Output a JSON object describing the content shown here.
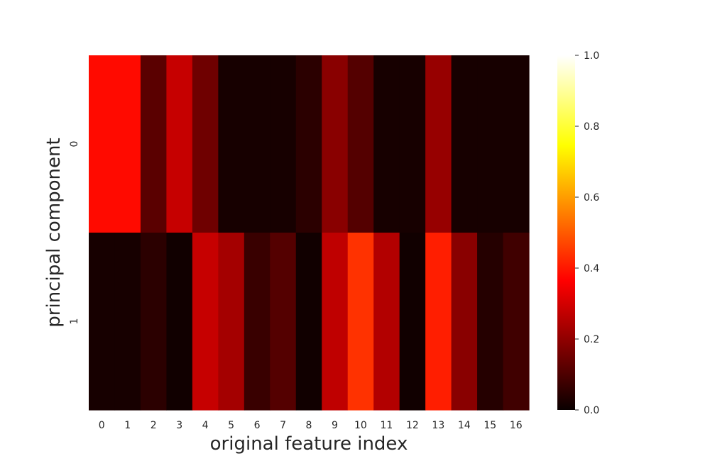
{
  "chart_data": {
    "type": "heatmap",
    "title": "",
    "xlabel": "original feature index",
    "ylabel": "principal component",
    "x_categories": [
      "0",
      "1",
      "2",
      "3",
      "4",
      "5",
      "6",
      "7",
      "8",
      "9",
      "10",
      "11",
      "12",
      "13",
      "14",
      "15",
      "16"
    ],
    "y_categories": [
      "0",
      "1"
    ],
    "values": [
      [
        0.38,
        0.38,
        0.12,
        0.28,
        0.15,
        0.02,
        0.02,
        0.02,
        0.05,
        0.19,
        0.11,
        0.02,
        0.02,
        0.21,
        0.02,
        0.02,
        0.02
      ],
      [
        0.02,
        0.02,
        0.05,
        0.01,
        0.28,
        0.23,
        0.07,
        0.11,
        0.01,
        0.27,
        0.44,
        0.25,
        0.01,
        0.41,
        0.19,
        0.04,
        0.08
      ]
    ],
    "colormap": "hot",
    "vmin": 0.0,
    "vmax": 1.0,
    "colorbar_ticks": [
      "0.0",
      "0.2",
      "0.4",
      "0.6",
      "0.8",
      "1.0"
    ],
    "grid": false
  }
}
